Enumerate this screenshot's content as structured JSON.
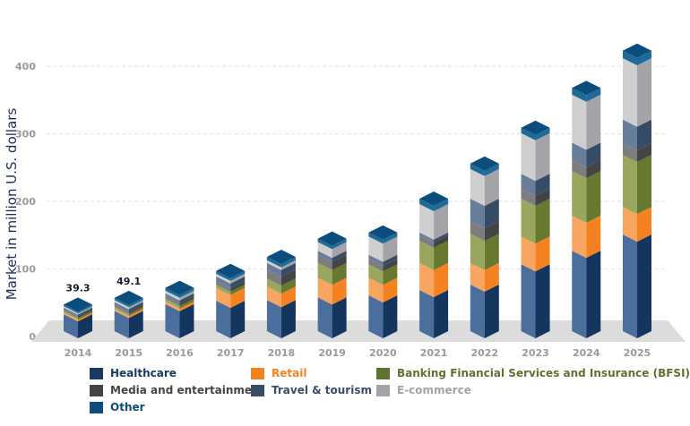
{
  "chart_data": {
    "type": "bar",
    "stacked": true,
    "style": "3d",
    "ylabel": "Market in million U.S. dollars",
    "ylim": [
      0,
      400
    ],
    "yticks": [
      0,
      100,
      200,
      300,
      400
    ],
    "grid": true,
    "legend_position": "bottom",
    "categories": [
      "2014",
      "2015",
      "2016",
      "2017",
      "2018",
      "2019",
      "2020",
      "2021",
      "2022",
      "2023",
      "2024",
      "2025"
    ],
    "series": [
      {
        "name": "Healthcare",
        "color": "#1b3a63",
        "front": "#4a6f9c",
        "side": "#14355e",
        "values": [
          25,
          30,
          40,
          45,
          46,
          50,
          53,
          61,
          69,
          99,
          119,
          143
        ]
      },
      {
        "name": "Retail",
        "color": "#f58220",
        "front": "#f7a560",
        "side": "#f58220",
        "values": [
          2.5,
          3,
          4,
          19,
          20,
          29,
          26,
          40,
          32,
          41,
          52,
          41
        ]
      },
      {
        "name": "Banking Financial Services and Insurance (BFSI)",
        "color": "#5f7330",
        "front": "#98a65e",
        "side": "#66792f",
        "values": [
          2.5,
          3,
          4,
          5,
          12,
          22,
          20,
          33,
          43,
          56,
          66,
          77
        ]
      },
      {
        "name": "Media and entertainment",
        "color": "#444444",
        "front": "#7d7d7d",
        "side": "#444444",
        "values": [
          2.5,
          3,
          4,
          5,
          13,
          12,
          8,
          8,
          19,
          15,
          16,
          17
        ]
      },
      {
        "name": "Travel & tourism",
        "color": "#384d68",
        "front": "#687d99",
        "side": "#354b66",
        "values": [
          2.5,
          4,
          4,
          7,
          10,
          6,
          6,
          4,
          33,
          22,
          26,
          35
        ]
      },
      {
        "name": "E-commerce",
        "color": "#a4a3a7",
        "front": "#cfcfcf",
        "side": "#a4a3a7",
        "values": [
          2,
          3,
          4,
          4,
          4,
          13,
          27,
          42,
          44,
          60,
          71,
          91
        ]
      },
      {
        "name": "Other",
        "color": "#0b4d7c",
        "front": "#1f6a99",
        "side": "#0b4d7c",
        "values": [
          2.3,
          3.1,
          4,
          4,
          5,
          5,
          6,
          8,
          8,
          8,
          10,
          11
        ]
      }
    ],
    "data_labels": [
      {
        "category": "2014",
        "text": "39.3"
      },
      {
        "category": "2015",
        "text": "49.1"
      }
    ]
  }
}
